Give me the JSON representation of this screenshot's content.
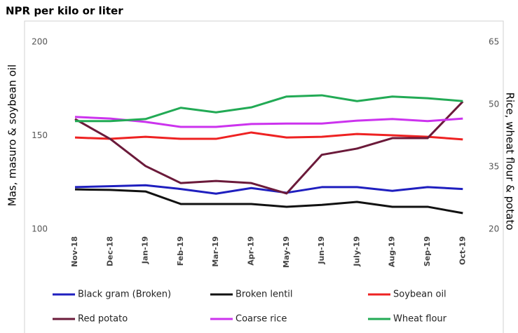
{
  "chart_data": {
    "type": "line",
    "title": "NPR per kilo or liter",
    "y_label": "Mas, masuro & soybean oil",
    "y2_label": "Rice, wheat flour & potato",
    "categories": [
      "Nov-18",
      "Dec-18",
      "Jan-19",
      "Feb-19",
      "Mar-19",
      "Apr-19",
      "May-19",
      "Jun-19",
      "July-19",
      "Aug-19",
      "Sep-19",
      "Oct-19"
    ],
    "ylim": [
      100,
      200
    ],
    "yticks": [
      100,
      150,
      200
    ],
    "y2lim": [
      20,
      65
    ],
    "y2ticks": [
      20,
      35,
      50,
      65
    ],
    "series": [
      {
        "name": "Black gram (Broken)",
        "color": "#1f1fbf",
        "values": [
          122.5,
          123,
          123.5,
          121.5,
          119,
          122,
          119.5,
          122.5,
          122.5,
          120.5,
          122.5,
          121.5
        ]
      },
      {
        "name": "Broken lentil",
        "color": "#111111",
        "values": [
          121.3,
          121,
          120.2,
          113.5,
          113.5,
          113.5,
          112,
          113,
          114.6,
          112,
          112,
          108.6
        ]
      },
      {
        "name": "Soybean oil",
        "color": "#ee2222",
        "values": [
          149,
          148.3,
          149.4,
          148.3,
          148.3,
          151.7,
          149,
          149.4,
          150.9,
          150.2,
          149.4,
          148
        ]
      },
      {
        "name": "Red potato",
        "color": "#6b1a3a",
        "axis": "y2",
        "values": [
          46.5,
          41.7,
          35.2,
          31.1,
          31.6,
          31.1,
          28.6,
          37.9,
          39.4,
          41.9,
          41.9,
          50.7
        ]
      },
      {
        "name": "Coarse rice",
        "color": "#cc33ee",
        "axis": "y2",
        "values": [
          47,
          46.6,
          45.8,
          44.6,
          44.6,
          45.3,
          45.4,
          45.4,
          46.1,
          46.5,
          46,
          46.6
        ]
      },
      {
        "name": "Wheat flour",
        "color": "#22aa55",
        "axis": "y2",
        "values": [
          46,
          46,
          46.5,
          49.2,
          48.1,
          49.3,
          51.9,
          52.2,
          50.8,
          51.9,
          51.5,
          50.8
        ]
      }
    ]
  }
}
